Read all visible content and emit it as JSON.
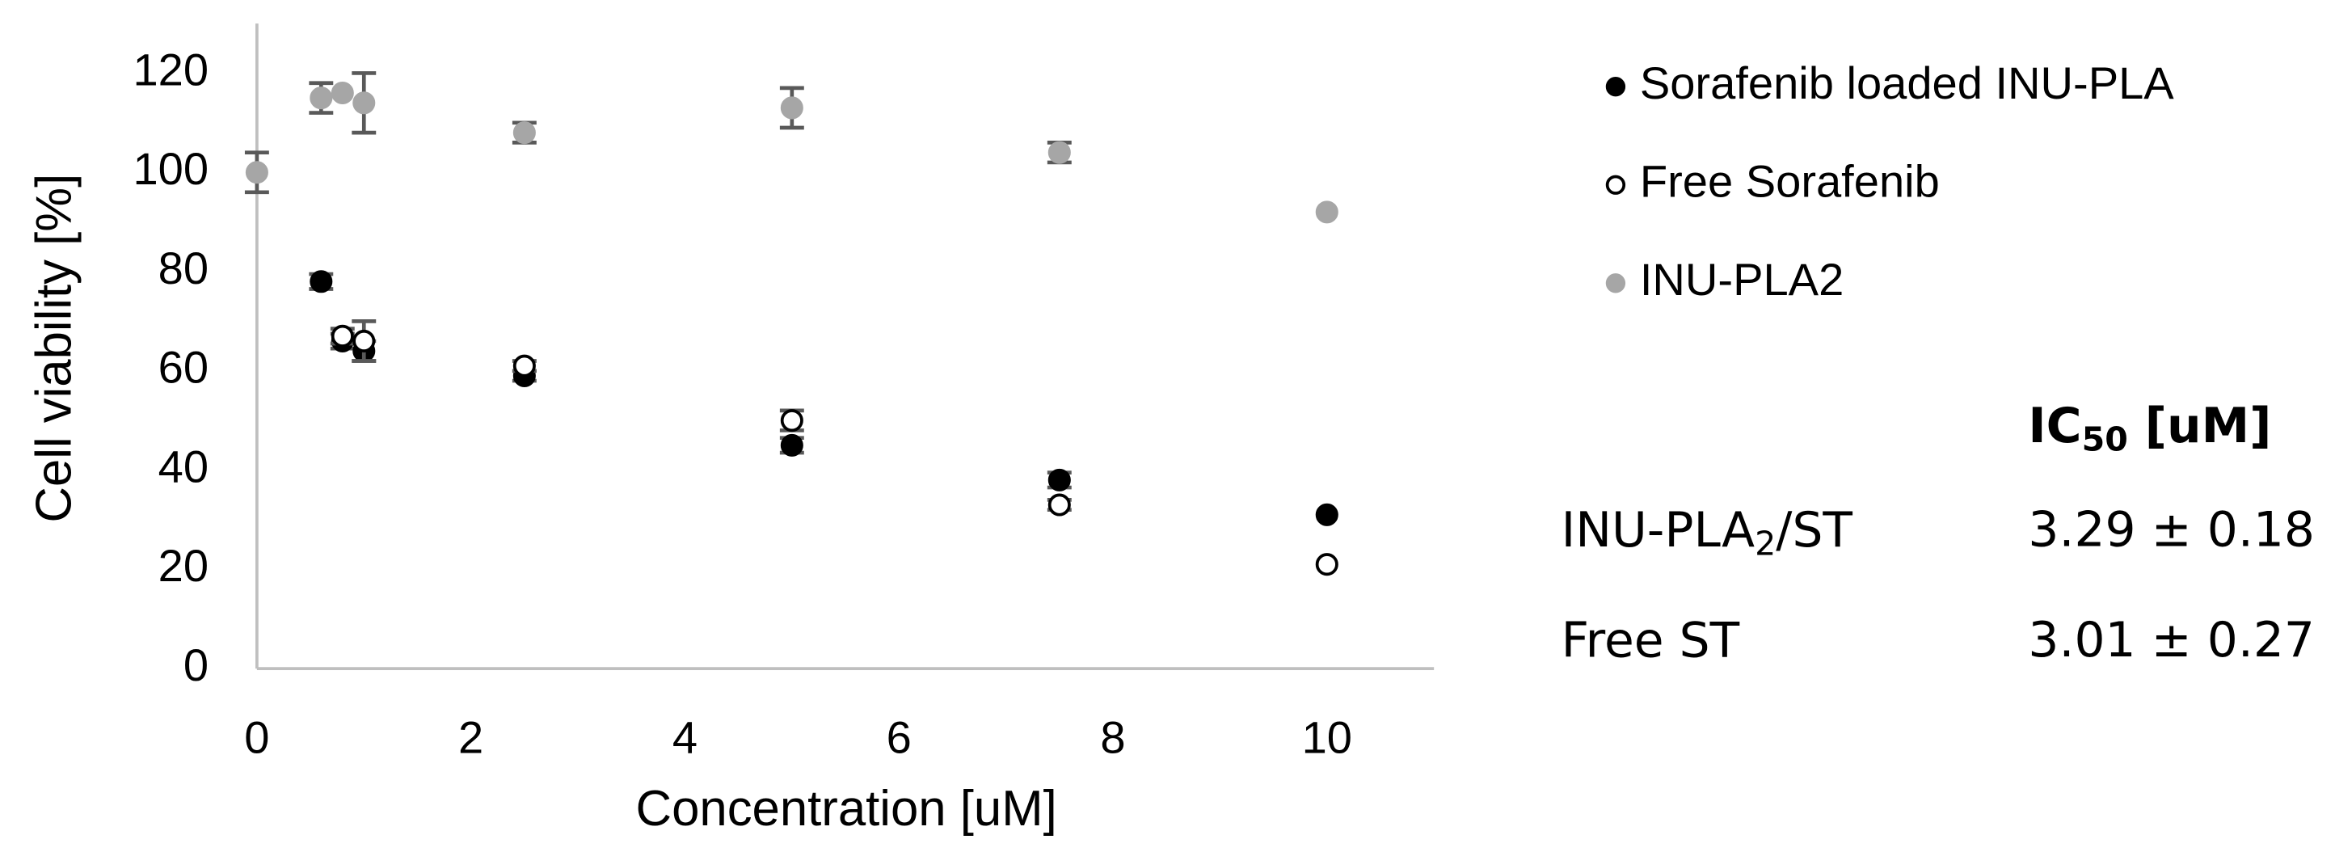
{
  "chart_data": {
    "type": "scatter",
    "x_label": "Concentration [uM]",
    "y_label": "Cell viability [%]",
    "xlim": [
      0,
      11
    ],
    "xticks": [
      0,
      2,
      4,
      6,
      8,
      10
    ],
    "ylim": [
      0,
      130
    ],
    "yticks": [
      0,
      20,
      40,
      60,
      80,
      100,
      120
    ],
    "grid": false,
    "legend": "right",
    "series": [
      {
        "name": "Sorafenib loaded INU-PLA",
        "color": "#000000",
        "marker_fill": "#000000",
        "x": [
          0.6,
          0.8,
          1,
          2.5,
          5,
          7.5,
          10
        ],
        "values": [
          78,
          66,
          64,
          59,
          45,
          38,
          31
        ],
        "errors": [
          1.5,
          1.5,
          2,
          1,
          1.5,
          1.5,
          null
        ]
      },
      {
        "name": "Free Sorafenib",
        "color": "#000000",
        "marker_fill": "#ffffff",
        "x": [
          0.8,
          1,
          2.5,
          5,
          7.5,
          10
        ],
        "values": [
          67,
          66,
          61,
          50,
          33,
          21
        ],
        "errors": [
          1.5,
          4,
          1,
          2,
          1,
          null
        ]
      },
      {
        "name": "INU-PLA2",
        "color": "#a6a6a6",
        "marker_fill": "#a6a6a6",
        "x": [
          0,
          0.6,
          0.8,
          1,
          2.5,
          5,
          7.5,
          10
        ],
        "values": [
          100,
          115,
          116,
          114,
          108,
          113,
          104,
          92
        ],
        "errors": [
          4,
          3,
          null,
          6,
          2,
          4,
          2,
          null
        ]
      }
    ]
  },
  "ic50_table": {
    "header": {
      "main": "IC",
      "sub": "50",
      "rest": " [uM]"
    },
    "rows": [
      {
        "label": {
          "main": "INU-PLA",
          "sub": "2",
          "rest": "/ST"
        },
        "value": "3.29 ± 0.18"
      },
      {
        "label": {
          "main": "Free ST"
        },
        "value": "3.01 ± 0.27"
      }
    ]
  }
}
